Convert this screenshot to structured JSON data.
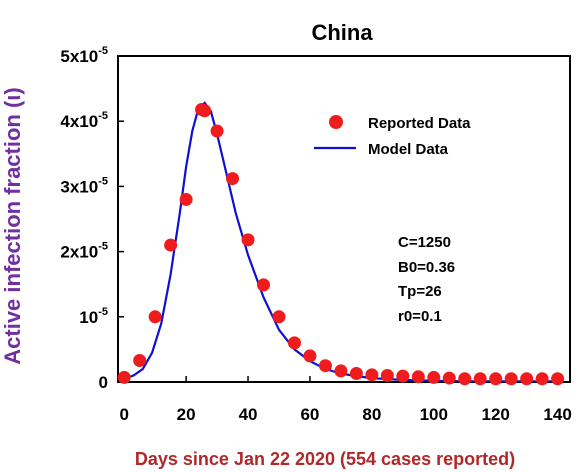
{
  "chart_data": {
    "type": "scatter",
    "title": "China",
    "xlabel": "Days since Jan 22 2020 (554 cases reported)",
    "ylabel": "Active infection fraction (ι)",
    "xlim": [
      -2,
      144
    ],
    "ylim": [
      0,
      5e-05
    ],
    "x_ticks": [
      0,
      20,
      40,
      60,
      80,
      100,
      120,
      140
    ],
    "y_ticks": [
      {
        "value": 0,
        "base": "0",
        "sup": ""
      },
      {
        "value": 1e-05,
        "base": "10",
        "sup": "-5"
      },
      {
        "value": 2e-05,
        "base": "2x10",
        "sup": "-5"
      },
      {
        "value": 3e-05,
        "base": "3x10",
        "sup": "-5"
      },
      {
        "value": 4e-05,
        "base": "4x10",
        "sup": "-5"
      },
      {
        "value": 5e-05,
        "base": "5x10",
        "sup": "-5"
      }
    ],
    "legend_position": "top-right",
    "grid": false,
    "series": [
      {
        "name": "Reported Data",
        "kind": "points",
        "color": "#ee1c1c",
        "x": [
          0,
          5,
          10,
          15,
          20,
          25,
          26,
          30,
          35,
          40,
          45,
          50,
          55,
          60,
          65,
          70,
          75,
          80,
          85,
          90,
          95,
          100,
          105,
          110,
          115,
          120,
          125,
          130,
          135,
          140
        ],
        "y": [
          7e-07,
          3.3e-06,
          1e-05,
          2.1e-05,
          2.8e-05,
          4.18e-05,
          4.16e-05,
          3.85e-05,
          3.12e-05,
          2.18e-05,
          1.49e-05,
          1e-05,
          6e-06,
          4e-06,
          2.5e-06,
          1.7e-06,
          1.3e-06,
          1.1e-06,
          1e-06,
          9e-07,
          8e-07,
          7e-07,
          6e-07,
          5e-07,
          5e-07,
          5e-07,
          5e-07,
          5e-07,
          5e-07,
          5e-07
        ]
      },
      {
        "name": "Model Data",
        "kind": "line",
        "color": "#1010d0",
        "x": [
          0,
          3,
          6,
          9,
          12,
          15,
          18,
          20,
          22,
          24,
          26,
          28,
          30,
          33,
          36,
          40,
          45,
          50,
          55,
          60,
          65,
          70,
          75,
          80,
          90,
          100,
          110,
          120,
          130,
          140
        ],
        "y": [
          5e-07,
          1e-06,
          2e-06,
          4.5e-06,
          9e-06,
          1.65e-05,
          2.6e-05,
          3.3e-05,
          3.85e-05,
          4.2e-05,
          4.28e-05,
          4.15e-05,
          3.8e-05,
          3.2e-05,
          2.6e-05,
          1.95e-05,
          1.3e-05,
          8e-06,
          5e-06,
          3.2e-06,
          2e-06,
          1.3e-06,
          9e-07,
          6e-07,
          3e-07,
          2e-07,
          1e-07,
          1e-07,
          1e-07,
          1e-07
        ]
      }
    ],
    "annotations": [
      "C=1250",
      "B0=0.36",
      "Tp=26",
      "r0=0.1"
    ]
  }
}
